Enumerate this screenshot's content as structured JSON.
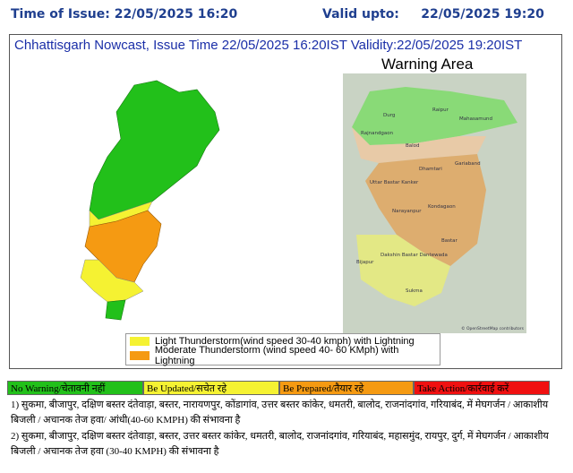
{
  "header": {
    "issue_time": "Time of Issue: 22/05/2025 16:20",
    "valid_upto": "Valid upto:     22/05/2025 19:20"
  },
  "title": "Chhattisgarh Nowcast, Issue Time 22/05/2025 16:20IST  Validity:22/05/2025 19:20IST",
  "warning_map": {
    "title": "Warning Area",
    "credit": "© OpenStreetMap contributors",
    "places": [
      "Durg",
      "Raipur",
      "Mahasamund",
      "Rajnandgaon",
      "Balod",
      "Dhamtari",
      "Gariaband",
      "Uttar Bastar Kanker",
      "Kondagaon",
      "Narayanpur",
      "Bastar",
      "Bijapur",
      "Dakshin Bastar Dantewada",
      "Sukma"
    ]
  },
  "legend": [
    "Light Thunderstorm(wind speed 30-40 kmph) with Lightning",
    "Moderate Thunderstorm (wind speed 40- 60 KMph) with Lightning"
  ],
  "levels": [
    "No Warning/चेतावनी नहीं",
    "Be Updated/सचेत रहे",
    "Be Prepared/तैयार रहे",
    "Take Action/कार्रवाई करें"
  ],
  "notes": [
    "1) सुकमा, बीजापुर, दक्षिण बस्तर दंतेवाड़ा, बस्तर, नारायणपुर, कोंडागांव, उत्तर बस्तर कांकेर, धमतरी, बालोद, राजनांदगांव, गरियाबंद, में मेघगर्जन / आकाशीय बिजली / अचानक तेज हवा/ आंधी(40-60 KMPH) की संभावना है",
    "2) सुकमा, बीजापुर, दक्षिण बस्तर दंतेवाड़ा, बस्तर, उत्तर बस्तर कांकेर, धमतरी, बालोद, राजनांदगांव, गरियाबंद, महासमुंद, रायपुर, दुर्ग, में मेघगर्जन / आकाशीय बिजली / अचानक तेज हवा (30-40 KMPH) की संभावना है"
  ]
}
